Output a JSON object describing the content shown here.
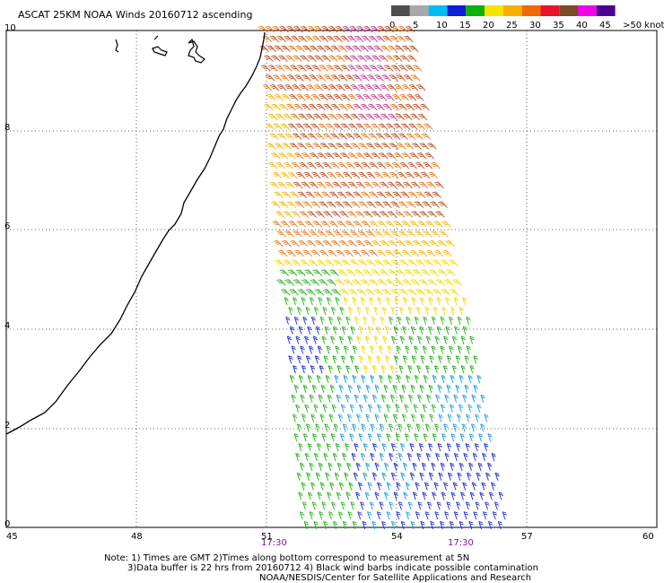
{
  "title": "ASCAT 25KM NOAA Winds 20160712 ascending",
  "legend": {
    "colors": [
      "#4d4d4d",
      "#a8a8a8",
      "#00bcf2",
      "#0a1fd6",
      "#0db300",
      "#f5e400",
      "#f7b000",
      "#ef6a00",
      "#e8142a",
      "#7c4a26",
      "#f200e6",
      "#4b0090"
    ],
    "labels": [
      "0",
      "5",
      "10",
      "15",
      "20",
      "25",
      "30",
      "35",
      "40",
      "45",
      ">50 knots"
    ]
  },
  "x_axis": {
    "ticks": [
      "45",
      "48",
      "51",
      "54",
      "57",
      "60"
    ]
  },
  "y_axis": {
    "ticks": [
      "0",
      "2",
      "4",
      "6",
      "8",
      "10"
    ]
  },
  "times": [
    "17:30",
    "17:30"
  ],
  "notes": [
    "Note: 1) Times are GMT 2)Times along bottom correspond to measurement at 5N",
    "3)Data buffer is 22 hrs from 20160712 4) Black wind barbs indicate possible contamination",
    "NOAA/NESDIS/Center for Satellite Applications and Research"
  ]
}
